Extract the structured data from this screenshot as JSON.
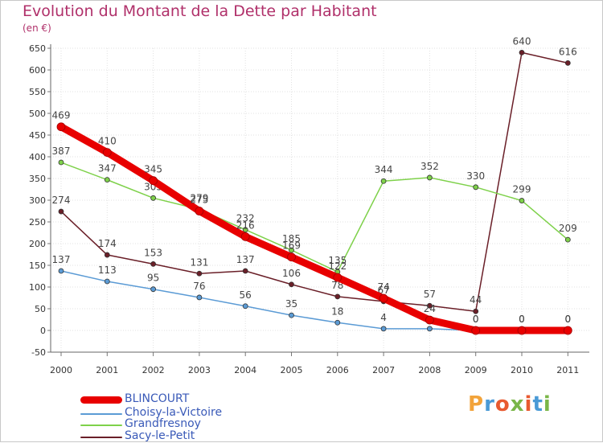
{
  "title": "Evolution du Montant de la Dette par Habitant",
  "unit": "(en €)",
  "brand": {
    "letters": [
      "P",
      "r",
      "o",
      "x",
      "i",
      "t",
      "i"
    ],
    "colors": [
      "#f2a33a",
      "#4a9ad6",
      "#e85a30",
      "#7ab648",
      "#e85a30",
      "#4a9ad6",
      "#7ab648"
    ]
  },
  "chart_data": {
    "type": "line",
    "x": [
      "2000",
      "2001",
      "2002",
      "2003",
      "2004",
      "2005",
      "2006",
      "2007",
      "2008",
      "2009",
      "2010",
      "2011"
    ],
    "ylim": [
      -50,
      650
    ],
    "yticks": [
      -50,
      0,
      50,
      100,
      150,
      200,
      250,
      300,
      350,
      400,
      450,
      500,
      550,
      600,
      650
    ],
    "grid": true,
    "legend_position": "bottom-left",
    "series": [
      {
        "name": "Sacy-le-Petit",
        "color": "#6a1f28",
        "width": 1.5,
        "marker": 3,
        "values": [
          274,
          174,
          153,
          131,
          137,
          106,
          78,
          67,
          57,
          44,
          640,
          616
        ],
        "labels": [
          "274",
          "174",
          "153",
          "131",
          "137",
          "106",
          "78",
          "67",
          "57",
          "44",
          "640",
          "616"
        ]
      },
      {
        "name": "Grandfresnoy",
        "color": "#7ed14a",
        "width": 1.5,
        "marker": 3,
        "values": [
          387,
          347,
          305,
          279,
          232,
          185,
          135,
          344,
          352,
          330,
          299,
          209
        ],
        "labels": [
          "387",
          "347",
          "305",
          "279",
          "232",
          "185",
          "135",
          "344",
          "352",
          "330",
          "299",
          "209"
        ]
      },
      {
        "name": "Choisy-la-Victoire",
        "color": "#5b9bd5",
        "width": 1.5,
        "marker": 3,
        "values": [
          137,
          113,
          95,
          76,
          56,
          35,
          18,
          4,
          4,
          0,
          0,
          0
        ],
        "labels": [
          "137",
          "113",
          "95",
          "76",
          "56",
          "35",
          "18",
          "4",
          "",
          "0",
          "0",
          "0"
        ]
      },
      {
        "name": "BLINCOURT",
        "color": "#e80000",
        "width": 9,
        "marker": 5,
        "values": [
          469,
          410,
          345,
          275,
          216,
          169,
          122,
          74,
          24,
          0,
          0,
          0
        ],
        "labels": [
          "469",
          "410",
          "345",
          "275",
          "216",
          "169",
          "122",
          "74",
          "24",
          "0",
          "0",
          "0"
        ]
      }
    ]
  },
  "legend": [
    {
      "name": "BLINCOURT",
      "color": "#e80000"
    },
    {
      "name": "Choisy-la-Victoire",
      "color": "#5b9bd5"
    },
    {
      "name": "Grandfresnoy",
      "color": "#7ed14a"
    },
    {
      "name": "Sacy-le-Petit",
      "color": "#6a1f28"
    }
  ]
}
